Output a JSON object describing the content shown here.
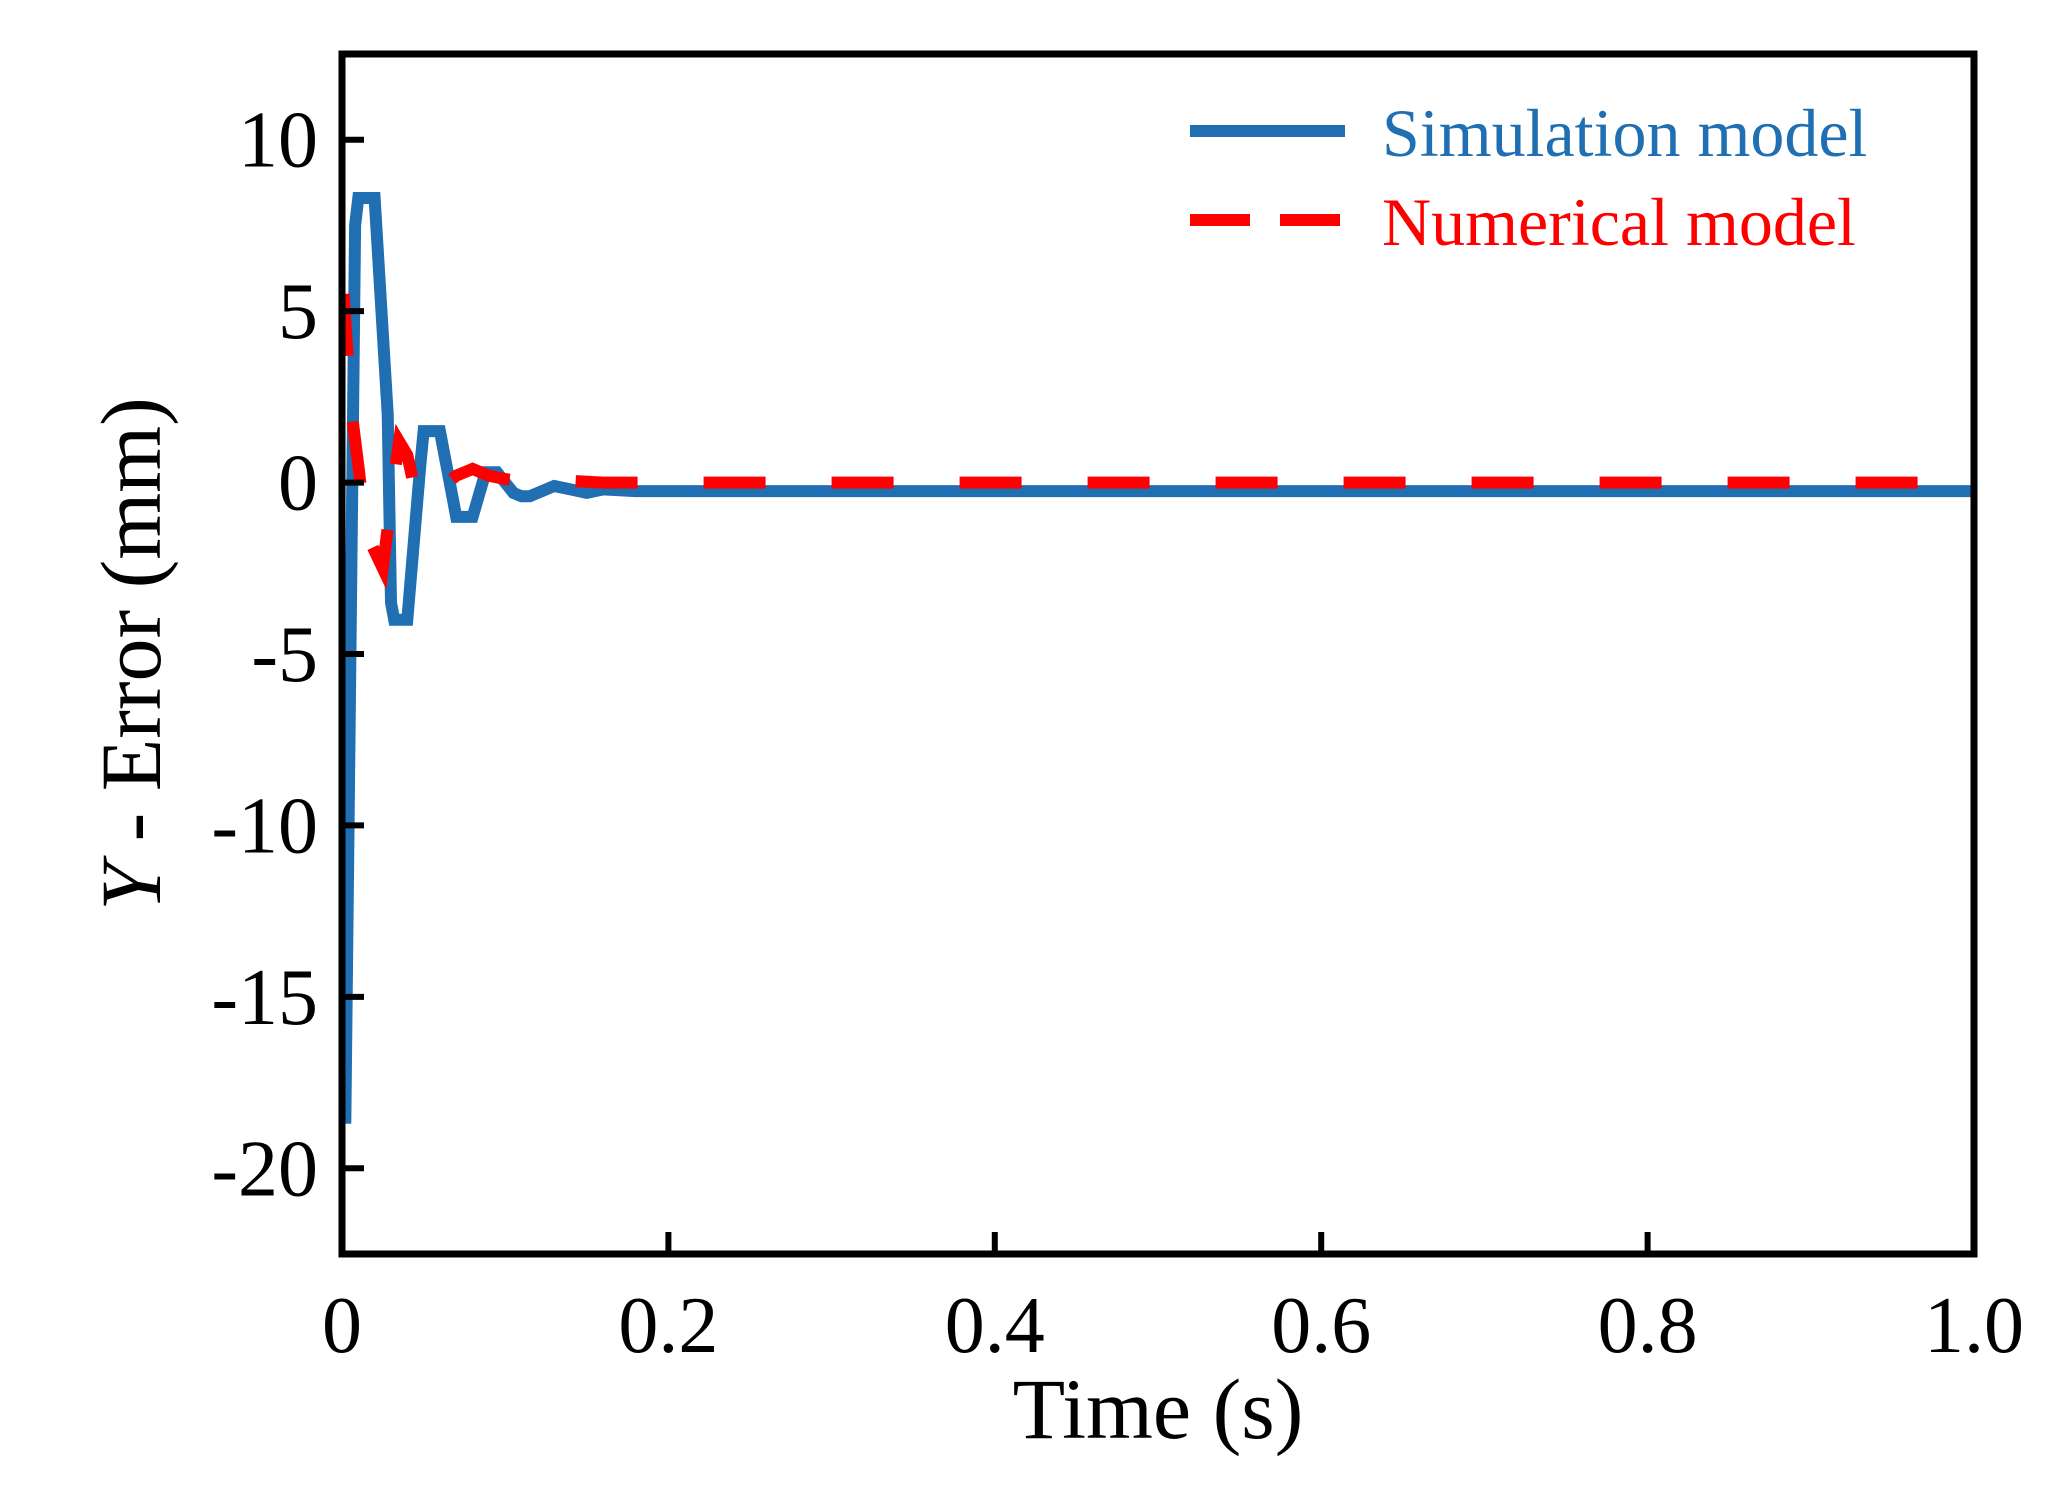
{
  "chart_data": {
    "type": "line",
    "xlabel": "Time (s)",
    "ylabel": {
      "italic": "Y",
      "rest": " - Error (mm)"
    },
    "xlim": [
      0,
      1.0
    ],
    "ylim": [
      -22.5,
      12.5
    ],
    "x_ticks": [
      0,
      0.2,
      0.4,
      0.6,
      0.8,
      1.0
    ],
    "x_tick_labels": [
      "0",
      "0.2",
      "0.4",
      "0.6",
      "0.8",
      "1.0"
    ],
    "y_ticks": [
      10,
      5,
      0,
      -5,
      -10,
      -15,
      -20
    ],
    "y_tick_labels": [
      "10",
      "5",
      "0",
      "-5",
      "-10",
      "-15",
      "-20"
    ],
    "grid": false,
    "legend_position": "top-right",
    "series": [
      {
        "name": "Simulation model",
        "color": "#1f6fb2",
        "style": "solid",
        "x": [
          0.002,
          0.008,
          0.01,
          0.012,
          0.02,
          0.028,
          0.03,
          0.032,
          0.04,
          0.048,
          0.05,
          0.052,
          0.06,
          0.068,
          0.07,
          0.072,
          0.08,
          0.088,
          0.09,
          0.095,
          0.1,
          0.105,
          0.11,
          0.115,
          0.12,
          0.13,
          0.14,
          0.15,
          0.16,
          0.18,
          0.2,
          0.3,
          0.4,
          0.5,
          0.6,
          0.7,
          0.8,
          0.9,
          1.0
        ],
        "y": [
          -18.7,
          7.5,
          8.3,
          8.3,
          8.3,
          2.0,
          -3.5,
          -4.0,
          -4.0,
          0.5,
          1.5,
          1.5,
          1.5,
          -0.5,
          -1.0,
          -1.0,
          -1.0,
          0.3,
          0.3,
          0.3,
          0.0,
          -0.3,
          -0.4,
          -0.4,
          -0.3,
          -0.1,
          -0.2,
          -0.3,
          -0.2,
          -0.25,
          -0.25,
          -0.25,
          -0.25,
          -0.25,
          -0.25,
          -0.25,
          -0.25,
          -0.25,
          -0.25
        ]
      },
      {
        "name": "Numerical model",
        "color": "#ff0000",
        "style": "dashed",
        "x": [
          0.001,
          0.003,
          0.006,
          0.01,
          0.015,
          0.02,
          0.025,
          0.03,
          0.035,
          0.04,
          0.045,
          0.05,
          0.055,
          0.06,
          0.065,
          0.07,
          0.075,
          0.08,
          0.085,
          0.09,
          0.1,
          0.11,
          0.12,
          0.14,
          0.16,
          0.2,
          0.3,
          0.4,
          0.5,
          0.6,
          0.7,
          0.8,
          0.9,
          1.0
        ],
        "y": [
          5.5,
          4.0,
          2.0,
          0.5,
          -1.5,
          -2.0,
          -2.5,
          -0.5,
          1.2,
          0.8,
          -0.3,
          -0.6,
          -0.4,
          -0.2,
          0.0,
          0.2,
          0.3,
          0.4,
          0.3,
          0.2,
          0.1,
          0.05,
          0.05,
          0.05,
          0.0,
          0.0,
          0.0,
          0.0,
          0.0,
          0.0,
          0.0,
          0.0,
          0.0,
          0.0
        ]
      }
    ]
  }
}
